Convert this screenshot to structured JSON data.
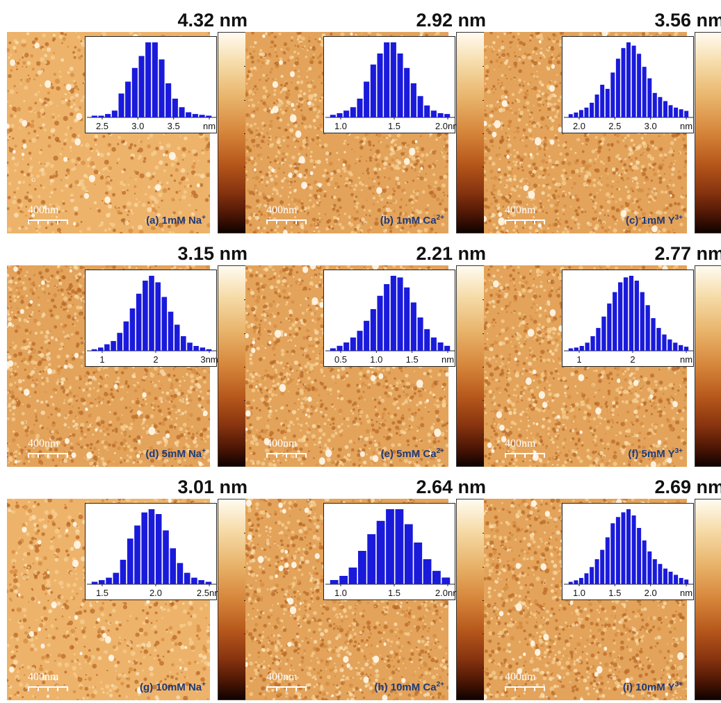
{
  "scale_bar_label": "400nm",
  "panels": [
    {
      "id": "a",
      "zmax": "4.32 nm",
      "label": "(a)  1mM Na",
      "ion": "+",
      "ticks": [
        "2.5",
        "3.0",
        "3.5",
        "nm"
      ],
      "hist": [
        2,
        2,
        4,
        8,
        28,
        42,
        58,
        72,
        88,
        88,
        68,
        40,
        22,
        12,
        6,
        4,
        3,
        2
      ],
      "texture": "smooth"
    },
    {
      "id": "b",
      "zmax": "2.92 nm",
      "label": "(b) 1mM Ca",
      "ion": "2+",
      "ticks": [
        "1.0",
        "1.5",
        "2.0nm"
      ],
      "hist": [
        3,
        5,
        8,
        12,
        22,
        42,
        62,
        75,
        88,
        88,
        75,
        58,
        40,
        25,
        14,
        8,
        5,
        4
      ],
      "texture": "rough"
    },
    {
      "id": "c",
      "zmax": "3.56 nm",
      "label": "(c) 1mM Y",
      "ion": "3+",
      "ticks": [
        "2.0",
        "2.5",
        "3.0",
        "nm"
      ],
      "hist": [
        4,
        6,
        9,
        12,
        18,
        28,
        40,
        35,
        55,
        72,
        85,
        92,
        88,
        78,
        62,
        48,
        30,
        25,
        20,
        15,
        12,
        10,
        8
      ],
      "texture": "rough"
    },
    {
      "id": "d",
      "zmax": "3.15 nm",
      "label": "(d)  5mM Na",
      "ion": "+",
      "ticks": [
        "1",
        "2",
        "3nm"
      ],
      "hist": [
        2,
        4,
        8,
        12,
        22,
        36,
        52,
        70,
        86,
        92,
        84,
        66,
        48,
        32,
        18,
        10,
        6,
        4,
        2
      ],
      "texture": "rough"
    },
    {
      "id": "e",
      "zmax": "2.21 nm",
      "label": "(e) 5mM Ca",
      "ion": "2+",
      "ticks": [
        "0.5",
        "1.0",
        "1.5",
        "nm"
      ],
      "hist": [
        3,
        6,
        10,
        16,
        24,
        36,
        50,
        66,
        80,
        90,
        88,
        76,
        58,
        40,
        26,
        16,
        10,
        6
      ],
      "texture": "rough"
    },
    {
      "id": "f",
      "zmax": "2.77 nm",
      "label": "(f) 5mM Y",
      "ion": "3+",
      "ticks": [
        "1",
        "2",
        "nm"
      ],
      "hist": [
        3,
        4,
        6,
        10,
        18,
        28,
        42,
        58,
        72,
        84,
        90,
        92,
        86,
        72,
        56,
        40,
        28,
        20,
        14,
        10,
        7,
        5
      ],
      "texture": "rough"
    },
    {
      "id": "g",
      "zmax": "3.01 nm",
      "label": "(g)  10mM Na",
      "ion": "+",
      "ticks": [
        "1.5",
        "2.0",
        "2.5nm"
      ],
      "hist": [
        3,
        5,
        8,
        14,
        30,
        56,
        72,
        88,
        92,
        86,
        66,
        44,
        26,
        14,
        8,
        5,
        3
      ],
      "texture": "smooth"
    },
    {
      "id": "h",
      "zmax": "2.64 nm",
      "label": "(h) 10mM Ca",
      "ion": "2+",
      "ticks": [
        "1.0",
        "1.5",
        "2.0nm"
      ],
      "hist": [
        5,
        10,
        20,
        40,
        60,
        76,
        90,
        90,
        72,
        50,
        30,
        16,
        8
      ],
      "texture": "rough"
    },
    {
      "id": "i",
      "zmax": "2.69 nm",
      "label": "(i) 10mM Y",
      "ion": "3+",
      "ticks": [
        "1.0",
        "1.5",
        "2.0",
        "nm"
      ],
      "hist": [
        3,
        5,
        8,
        14,
        22,
        32,
        44,
        60,
        78,
        86,
        92,
        96,
        88,
        72,
        56,
        42,
        32,
        26,
        20,
        16,
        12,
        8,
        6
      ],
      "texture": "rough"
    }
  ],
  "colors": {
    "afm_light": "#f3c98a",
    "afm_mid": "#d08a3e",
    "afm_dark": "#8a4614",
    "bar": "#1a1adb",
    "label": "#1f3a7a"
  }
}
